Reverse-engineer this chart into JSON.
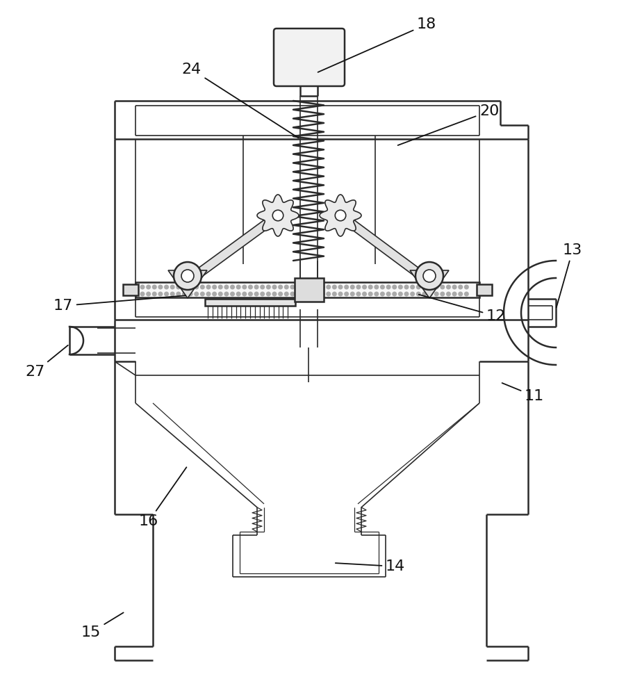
{
  "bg_color": "#ffffff",
  "line_color": "#2a2a2a",
  "figsize": [
    8.88,
    10.0
  ],
  "dpi": 100
}
